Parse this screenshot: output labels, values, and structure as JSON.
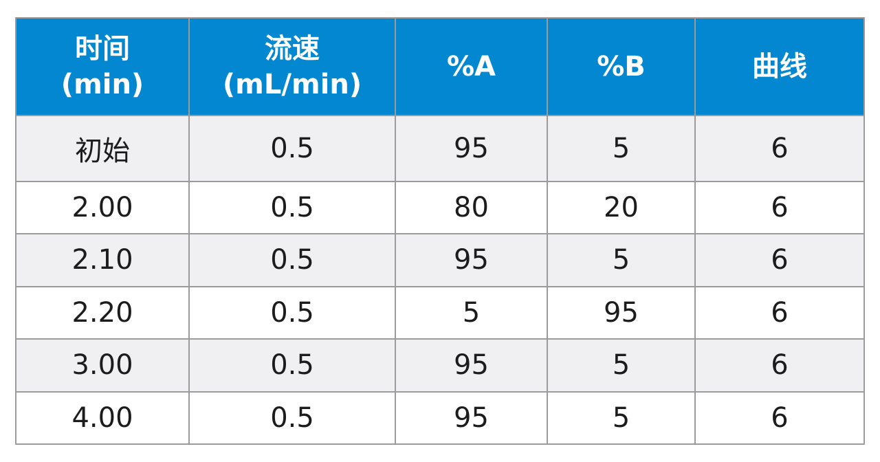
{
  "table": {
    "headers": [
      {
        "line1": "时间",
        "line2": "(min)"
      },
      {
        "line1": "流速",
        "line2": "(mL/min)"
      },
      {
        "line1": "%A",
        "line2": ""
      },
      {
        "line1": "%B",
        "line2": ""
      },
      {
        "line1": "曲线",
        "line2": ""
      }
    ],
    "rows": [
      [
        "初始",
        "0.5",
        "95",
        "5",
        "6"
      ],
      [
        "2.00",
        "0.5",
        "80",
        "20",
        "6"
      ],
      [
        "2.10",
        "0.5",
        "95",
        "5",
        "6"
      ],
      [
        "2.20",
        "0.5",
        "5",
        "95",
        "6"
      ],
      [
        "3.00",
        "0.5",
        "95",
        "5",
        "6"
      ],
      [
        "4.00",
        "0.5",
        "95",
        "5",
        "6"
      ]
    ]
  },
  "colors": {
    "header_bg": "#0287d0",
    "header_text": "#ffffff",
    "row_alt_bg": "#f0f0f3",
    "grid": "#9b9b9b"
  }
}
